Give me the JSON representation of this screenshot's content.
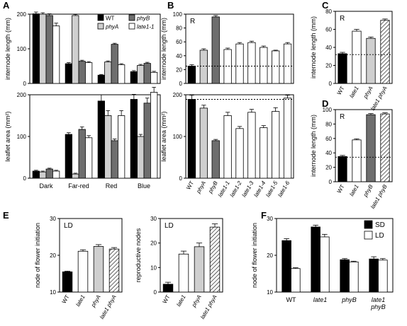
{
  "colors": {
    "black": "#000000",
    "lightgray": "#cfcfcf",
    "darkgray": "#6e6e6e",
    "white": "#ffffff",
    "hatch": "hatch"
  },
  "chart_data": [
    {
      "id": "A-top",
      "panel_letter": "A",
      "type": "bar",
      "ylabel": "internode length (mm)",
      "ylim": [
        0,
        200
      ],
      "yticks": [
        0,
        100,
        200
      ],
      "categories": [
        "Dark",
        "Far-red",
        "Red",
        "Blue"
      ],
      "show_xticklabels": false,
      "legend": {
        "placement": "top-right",
        "entries": [
          {
            "label": "WT",
            "fill": "black",
            "italic": false
          },
          {
            "label": "phyB",
            "fill": "darkgray",
            "italic": true
          },
          {
            "label": "phyA",
            "fill": "lightgray",
            "italic": true
          },
          {
            "label": "late1-1",
            "fill": "white",
            "italic": true
          }
        ]
      },
      "series": [
        {
          "name": "WT",
          "fill": "black",
          "values": [
            201,
            57,
            24,
            34
          ],
          "errors": [
            5,
            3,
            2,
            3
          ]
        },
        {
          "name": "phyA",
          "fill": "lightgray",
          "values": [
            200,
            196,
            62,
            52
          ],
          "errors": [
            4,
            3,
            3,
            3
          ]
        },
        {
          "name": "phyB",
          "fill": "darkgray",
          "values": [
            196,
            64,
            113,
            58
          ],
          "errors": [
            5,
            3,
            3,
            3
          ]
        },
        {
          "name": "late1-1",
          "fill": "white",
          "values": [
            166,
            60,
            54,
            32
          ],
          "errors": [
            8,
            3,
            3,
            3
          ]
        }
      ]
    },
    {
      "id": "A-bottom",
      "type": "bar",
      "ylabel": "leaflet area (mm²)",
      "ylim": [
        0,
        200
      ],
      "yticks": [
        0,
        100,
        200
      ],
      "categories": [
        "Dark",
        "Far-red",
        "Red",
        "Blue"
      ],
      "show_xticklabels": true,
      "series": [
        {
          "name": "WT",
          "fill": "black",
          "values": [
            17,
            105,
            185,
            189
          ],
          "errors": [
            2,
            4,
            15,
            12
          ]
        },
        {
          "name": "phyA",
          "fill": "lightgray",
          "values": [
            15,
            10,
            150,
            100
          ],
          "errors": [
            2,
            2,
            12,
            5
          ]
        },
        {
          "name": "phyB",
          "fill": "darkgray",
          "values": [
            22,
            117,
            90,
            180
          ],
          "errors": [
            2,
            6,
            4,
            12
          ]
        },
        {
          "name": "late1-1",
          "fill": "white",
          "values": [
            17,
            97,
            150,
            206
          ],
          "errors": [
            2,
            5,
            12,
            12
          ]
        }
      ]
    },
    {
      "id": "B-top",
      "panel_letter": "B",
      "type": "bar",
      "annotation": "R",
      "ylabel": "internode length (mm)",
      "ylim": [
        0,
        100
      ],
      "yticks": [
        0,
        20,
        40,
        60,
        80,
        100
      ],
      "reference_line": 25,
      "categories": [
        "WT",
        "phyA",
        "phyB",
        "late1-1",
        "late1-2",
        "late1-3",
        "late1-4",
        "late1-5",
        "late1-6"
      ],
      "show_xticklabels": false,
      "values": [
        25,
        48,
        96,
        49,
        57,
        59,
        52,
        47,
        57
      ],
      "errors": [
        2,
        2,
        2,
        2,
        2,
        2,
        2,
        1,
        2
      ],
      "fills": [
        "black",
        "lightgray",
        "darkgray",
        "white",
        "white",
        "white",
        "white",
        "white",
        "white"
      ]
    },
    {
      "id": "B-bottom",
      "type": "bar",
      "ylabel": "leaflet area (mm²)",
      "ylim": [
        0,
        200
      ],
      "yticks": [
        0,
        100,
        200
      ],
      "reference_line": 189,
      "categories": [
        "WT",
        "phyA",
        "phyB",
        "late1-1",
        "late1-2",
        "late1-3",
        "late1-4",
        "late1-5",
        "late1-6"
      ],
      "show_xticklabels": true,
      "values": [
        189,
        168,
        90,
        150,
        119,
        158,
        121,
        160,
        192
      ],
      "errors": [
        10,
        7,
        3,
        8,
        5,
        7,
        5,
        9,
        7
      ],
      "fills": [
        "black",
        "lightgray",
        "darkgray",
        "white",
        "white",
        "white",
        "white",
        "white",
        "white"
      ]
    },
    {
      "id": "C",
      "panel_letter": "C",
      "type": "bar",
      "annotation": "R",
      "ylabel": "internode length (mm)",
      "ylim": [
        0,
        80
      ],
      "yticks": [
        0,
        20,
        40,
        60,
        80
      ],
      "reference_line": 32,
      "categories": [
        "WT",
        "late1",
        "phyA",
        "late1 phyA"
      ],
      "show_xticklabels": true,
      "values": [
        33,
        58,
        50,
        70
      ],
      "errors": [
        1.5,
        2,
        1.5,
        1.5
      ],
      "fills": [
        "black",
        "white",
        "lightgray",
        "hatch"
      ]
    },
    {
      "id": "D",
      "panel_letter": "D",
      "type": "bar",
      "annotation": "R",
      "ylabel": "internode length (mm)",
      "ylim": [
        0,
        100
      ],
      "yticks": [
        0,
        20,
        40,
        60,
        80,
        100
      ],
      "reference_line": 34,
      "categories": [
        "WT",
        "late1",
        "phyB",
        "late1 phyB"
      ],
      "show_xticklabels": true,
      "values": [
        35,
        58,
        93,
        94
      ],
      "errors": [
        1.5,
        1.5,
        1.5,
        1.5
      ],
      "fills": [
        "black",
        "white",
        "darkgray",
        "hatch"
      ]
    },
    {
      "id": "E-left",
      "panel_letter": "E",
      "type": "bar",
      "annotation": "LD",
      "ylabel": "node of flower initiation",
      "ylim": [
        10,
        30
      ],
      "yticks": [
        10,
        20,
        30
      ],
      "categories": [
        "WT",
        "late1",
        "phyA",
        "late1 phyA"
      ],
      "show_xticklabels": true,
      "values": [
        15.5,
        21.1,
        22.4,
        21.7
      ],
      "errors": [
        0.2,
        0.4,
        0.5,
        0.4
      ],
      "fills": [
        "black",
        "white",
        "lightgray",
        "hatch"
      ]
    },
    {
      "id": "E-right",
      "type": "bar",
      "annotation": "LD",
      "ylabel": "reproductive nodes",
      "ylim": [
        0,
        30
      ],
      "yticks": [
        0,
        10,
        20,
        30
      ],
      "categories": [
        "WT",
        "late1",
        "phyA",
        "late1 phyA"
      ],
      "show_xticklabels": true,
      "values": [
        3.2,
        15.5,
        18.5,
        26.5
      ],
      "errors": [
        0.8,
        1.2,
        1.5,
        1.3
      ],
      "fills": [
        "black",
        "white",
        "lightgray",
        "hatch"
      ]
    },
    {
      "id": "F",
      "panel_letter": "F",
      "type": "bar",
      "ylabel": "node of flower initiation",
      "ylim": [
        10,
        30
      ],
      "yticks": [
        10,
        20,
        30
      ],
      "categories": [
        "WT",
        "late1",
        "phyB",
        "late1\nphyB"
      ],
      "show_xticklabels": true,
      "legend": {
        "placement": "top-right",
        "entries": [
          {
            "label": "SD",
            "fill": "black",
            "italic": false
          },
          {
            "label": "LD",
            "fill": "white",
            "italic": false
          }
        ]
      },
      "series": [
        {
          "name": "SD",
          "fill": "black",
          "values": [
            24,
            27.7,
            18.8,
            19
          ],
          "errors": [
            0.5,
            0.5,
            0.3,
            0.6
          ]
        },
        {
          "name": "LD",
          "fill": "white",
          "values": [
            16.4,
            25,
            18.2,
            18.7
          ],
          "errors": [
            0.2,
            0.7,
            0.2,
            0.4
          ]
        }
      ]
    }
  ]
}
